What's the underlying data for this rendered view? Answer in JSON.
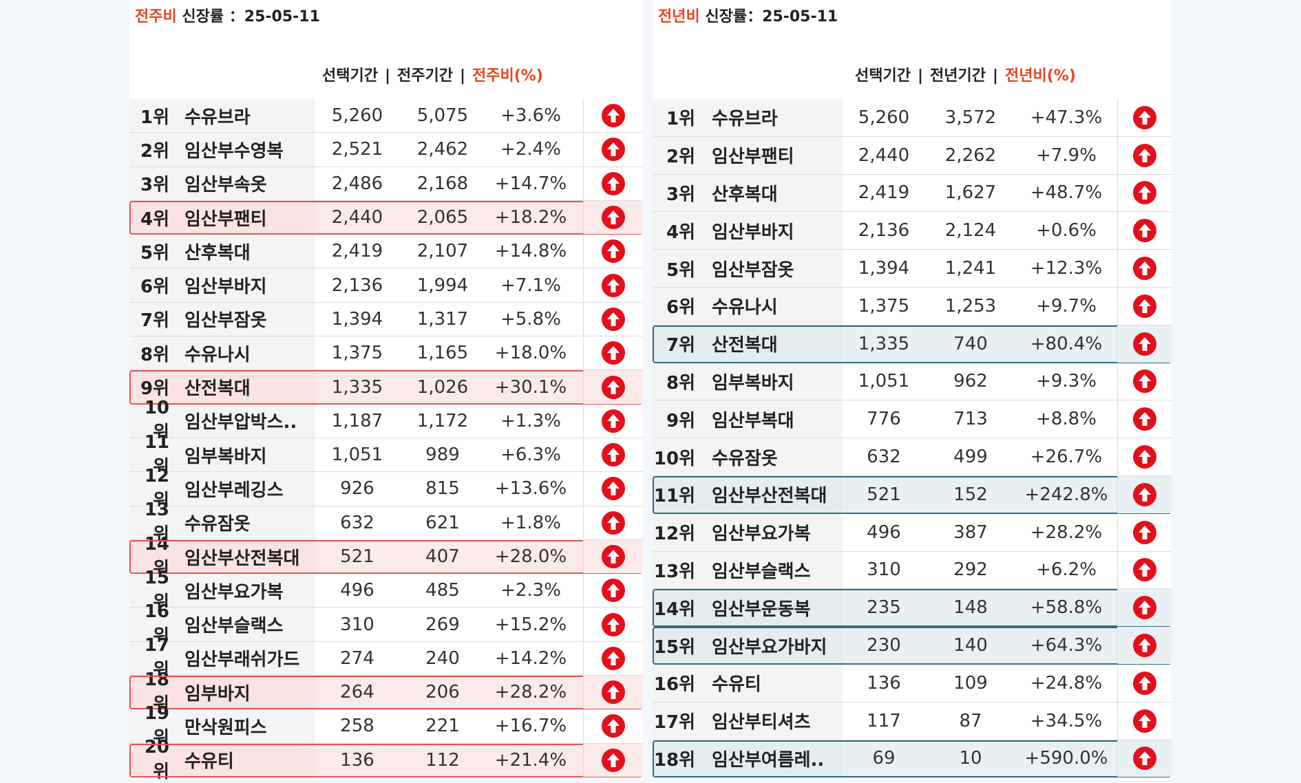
{
  "left": {
    "title_accent": "전주비",
    "title_rest": " 신장률 ：25-05-11",
    "header": {
      "col1": "선택기간",
      "col2": "전주기간",
      "col3": "전주비(%)",
      "sep": "|"
    },
    "rows": [
      {
        "rank": "1위",
        "name": "수유브라",
        "selected": "5,260",
        "prior": "5,075",
        "change": "+3.6%",
        "highlight": false
      },
      {
        "rank": "2위",
        "name": "임산부수영복",
        "selected": "2,521",
        "prior": "2,462",
        "change": "+2.4%",
        "highlight": false
      },
      {
        "rank": "3위",
        "name": "임산부속옷",
        "selected": "2,486",
        "prior": "2,168",
        "change": "+14.7%",
        "highlight": false
      },
      {
        "rank": "4위",
        "name": "임산부팬티",
        "selected": "2,440",
        "prior": "2,065",
        "change": "+18.2%",
        "highlight": true
      },
      {
        "rank": "5위",
        "name": "산후복대",
        "selected": "2,419",
        "prior": "2,107",
        "change": "+14.8%",
        "highlight": false
      },
      {
        "rank": "6위",
        "name": "임산부바지",
        "selected": "2,136",
        "prior": "1,994",
        "change": "+7.1%",
        "highlight": false
      },
      {
        "rank": "7위",
        "name": "임산부잠옷",
        "selected": "1,394",
        "prior": "1,317",
        "change": "+5.8%",
        "highlight": false
      },
      {
        "rank": "8위",
        "name": "수유나시",
        "selected": "1,375",
        "prior": "1,165",
        "change": "+18.0%",
        "highlight": false
      },
      {
        "rank": "9위",
        "name": "산전복대",
        "selected": "1,335",
        "prior": "1,026",
        "change": "+30.1%",
        "highlight": true
      },
      {
        "rank": "10위",
        "name": "임산부압박스..",
        "selected": "1,187",
        "prior": "1,172",
        "change": "+1.3%",
        "highlight": false
      },
      {
        "rank": "11위",
        "name": "임부복바지",
        "selected": "1,051",
        "prior": "989",
        "change": "+6.3%",
        "highlight": false
      },
      {
        "rank": "12위",
        "name": "임산부레깅스",
        "selected": "926",
        "prior": "815",
        "change": "+13.6%",
        "highlight": false
      },
      {
        "rank": "13위",
        "name": "수유잠옷",
        "selected": "632",
        "prior": "621",
        "change": "+1.8%",
        "highlight": false
      },
      {
        "rank": "14위",
        "name": "임산부산전복대",
        "selected": "521",
        "prior": "407",
        "change": "+28.0%",
        "highlight": true
      },
      {
        "rank": "15위",
        "name": "임산부요가복",
        "selected": "496",
        "prior": "485",
        "change": "+2.3%",
        "highlight": false
      },
      {
        "rank": "16위",
        "name": "임산부슬랙스",
        "selected": "310",
        "prior": "269",
        "change": "+15.2%",
        "highlight": false
      },
      {
        "rank": "17위",
        "name": "임산부래쉬가드",
        "selected": "274",
        "prior": "240",
        "change": "+14.2%",
        "highlight": false
      },
      {
        "rank": "18위",
        "name": "임부바지",
        "selected": "264",
        "prior": "206",
        "change": "+28.2%",
        "highlight": true
      },
      {
        "rank": "19위",
        "name": "만삭원피스",
        "selected": "258",
        "prior": "221",
        "change": "+16.7%",
        "highlight": false
      },
      {
        "rank": "20위",
        "name": "수유티",
        "selected": "136",
        "prior": "112",
        "change": "+21.4%",
        "highlight": true
      }
    ]
  },
  "right": {
    "title_accent": "전년비",
    "title_rest": " 신장률：25-05-11",
    "header": {
      "col1": "선택기간",
      "col2": "전년기간",
      "col3": "전년비(%)",
      "sep": "|"
    },
    "rows": [
      {
        "rank": "1위",
        "name": "수유브라",
        "selected": "5,260",
        "prior": "3,572",
        "change": "+47.3%",
        "highlight": false
      },
      {
        "rank": "2위",
        "name": "임산부팬티",
        "selected": "2,440",
        "prior": "2,262",
        "change": "+7.9%",
        "highlight": false
      },
      {
        "rank": "3위",
        "name": "산후복대",
        "selected": "2,419",
        "prior": "1,627",
        "change": "+48.7%",
        "highlight": false
      },
      {
        "rank": "4위",
        "name": "임산부바지",
        "selected": "2,136",
        "prior": "2,124",
        "change": "+0.6%",
        "highlight": false
      },
      {
        "rank": "5위",
        "name": "임산부잠옷",
        "selected": "1,394",
        "prior": "1,241",
        "change": "+12.3%",
        "highlight": false
      },
      {
        "rank": "6위",
        "name": "수유나시",
        "selected": "1,375",
        "prior": "1,253",
        "change": "+9.7%",
        "highlight": false
      },
      {
        "rank": "7위",
        "name": "산전복대",
        "selected": "1,335",
        "prior": "740",
        "change": "+80.4%",
        "highlight": true
      },
      {
        "rank": "8위",
        "name": "임부복바지",
        "selected": "1,051",
        "prior": "962",
        "change": "+9.3%",
        "highlight": false
      },
      {
        "rank": "9위",
        "name": "임산부복대",
        "selected": "776",
        "prior": "713",
        "change": "+8.8%",
        "highlight": false
      },
      {
        "rank": "10위",
        "name": "수유잠옷",
        "selected": "632",
        "prior": "499",
        "change": "+26.7%",
        "highlight": false
      },
      {
        "rank": "11위",
        "name": "임산부산전복대",
        "selected": "521",
        "prior": "152",
        "change": "+242.8%",
        "highlight": true
      },
      {
        "rank": "12위",
        "name": "임산부요가복",
        "selected": "496",
        "prior": "387",
        "change": "+28.2%",
        "highlight": false
      },
      {
        "rank": "13위",
        "name": "임산부슬랙스",
        "selected": "310",
        "prior": "292",
        "change": "+6.2%",
        "highlight": false
      },
      {
        "rank": "14위",
        "name": "임산부운동복",
        "selected": "235",
        "prior": "148",
        "change": "+58.8%",
        "highlight": true
      },
      {
        "rank": "15위",
        "name": "임산부요가바지",
        "selected": "230",
        "prior": "140",
        "change": "+64.3%",
        "highlight": true
      },
      {
        "rank": "16위",
        "name": "수유티",
        "selected": "136",
        "prior": "109",
        "change": "+24.8%",
        "highlight": false
      },
      {
        "rank": "17위",
        "name": "임산부티셔츠",
        "selected": "117",
        "prior": "87",
        "change": "+34.5%",
        "highlight": false
      },
      {
        "rank": "18위",
        "name": "임산부여름레..",
        "selected": "69",
        "prior": "10",
        "change": "+590.0%",
        "highlight": true
      }
    ]
  },
  "icon_name": "up-arrow-circle-icon",
  "colors": {
    "accent": "#e8441f",
    "up_icon": "#e3101b",
    "left_highlight": "#e35454",
    "right_highlight": "#2d6d7d"
  }
}
